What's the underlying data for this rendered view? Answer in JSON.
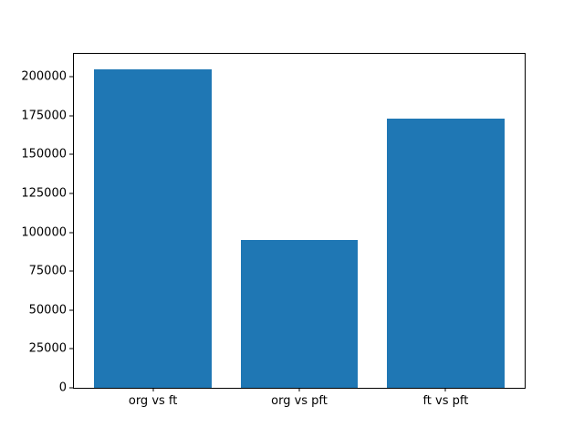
{
  "chart_data": {
    "type": "bar",
    "categories": [
      "org vs ft",
      "org vs pft",
      "ft vs pft"
    ],
    "values": [
      204500,
      95000,
      173000
    ],
    "title": "",
    "xlabel": "",
    "ylabel": "",
    "ylim": [
      0,
      214725
    ],
    "yticks": [
      0,
      25000,
      50000,
      75000,
      100000,
      125000,
      150000,
      175000,
      200000
    ],
    "bar_color": "#1f77b4",
    "bar_width_fraction": 0.8,
    "grid": false,
    "legend": null,
    "spines": "box",
    "background_color": "#ffffff",
    "text_color": "#000000"
  }
}
